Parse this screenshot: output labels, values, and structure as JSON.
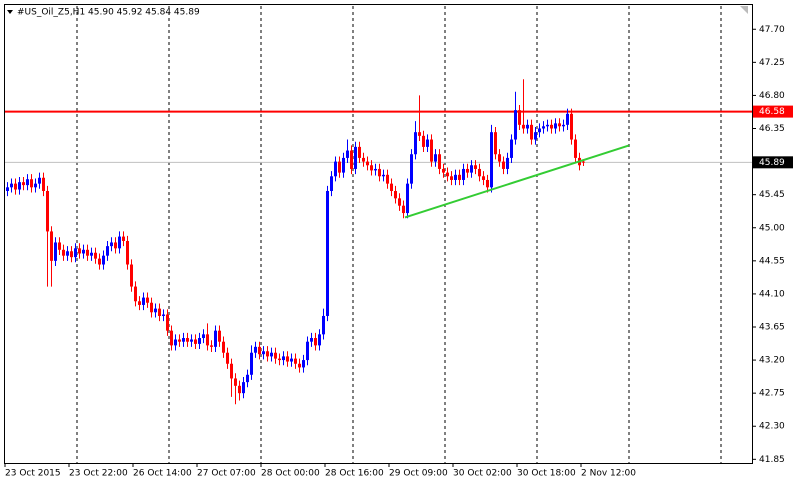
{
  "chart_data": {
    "type": "candlestick",
    "title": "#US_Oil_Z5,H1  45.90 45.92 45.84 45.89",
    "up_color": "#0000ff",
    "down_color": "#ff0000",
    "ylim": [
      41.8,
      48.03
    ],
    "yticks": [
      {
        "value": 47.7,
        "label": "47.70"
      },
      {
        "value": 47.25,
        "label": "47.25"
      },
      {
        "value": 46.8,
        "label": "46.80"
      },
      {
        "value": 46.35,
        "label": "46.35"
      },
      {
        "value": 45.45,
        "label": "45.45"
      },
      {
        "value": 45.0,
        "label": "45.00"
      },
      {
        "value": 44.55,
        "label": "44.55"
      },
      {
        "value": 44.1,
        "label": "44.10"
      },
      {
        "value": 43.65,
        "label": "43.65"
      },
      {
        "value": 43.2,
        "label": "43.20"
      },
      {
        "value": 42.75,
        "label": "42.75"
      },
      {
        "value": 42.3,
        "label": "42.30"
      },
      {
        "value": 41.85,
        "label": "41.85"
      }
    ],
    "resistance": {
      "value": 46.58,
      "color": "#ff0000"
    },
    "last_price": {
      "value": 45.89,
      "color": "#c0c0c0"
    },
    "trendline": {
      "values": [
        45.14,
        46.12
      ],
      "color": "#33cc33"
    },
    "categories": [
      "23 Oct 2015",
      null,
      null,
      null,
      null,
      null,
      null,
      null,
      null,
      null,
      null,
      null,
      null,
      null,
      null,
      null,
      "23 Oct 22:00",
      null,
      null,
      null,
      null,
      null,
      null,
      null,
      null,
      null,
      null,
      null,
      null,
      null,
      null,
      null,
      "26 Oct 14:00",
      null,
      null,
      null,
      null,
      null,
      null,
      null,
      null,
      null,
      null,
      null,
      null,
      null,
      null,
      null,
      "27 Oct 07:00",
      null,
      null,
      null,
      null,
      null,
      null,
      null,
      null,
      null,
      null,
      null,
      null,
      null,
      null,
      null,
      "28 Oct 00:00",
      null,
      null,
      null,
      null,
      null,
      null,
      null,
      null,
      null,
      null,
      null,
      null,
      null,
      null,
      null,
      "28 Oct 16:00",
      null,
      null,
      null,
      null,
      null,
      null,
      null,
      null,
      null,
      null,
      null,
      null,
      null,
      null,
      null,
      "29 Oct 09:00",
      null,
      null,
      null,
      null,
      null,
      null,
      null,
      null,
      null,
      null,
      null,
      null,
      null,
      null,
      null,
      "30 Oct 02:00",
      null,
      null,
      null,
      null,
      null,
      null,
      null,
      null,
      null,
      null,
      null,
      null,
      null,
      null,
      null,
      "30 Oct 18:00",
      null,
      null,
      null,
      null,
      null,
      null,
      null,
      null,
      null,
      null,
      null,
      null,
      null,
      null,
      null,
      "2 Nov 12:00"
    ],
    "ohlc": [
      [
        45.5,
        45.62,
        45.43,
        45.55
      ],
      [
        45.55,
        45.67,
        45.48,
        45.6
      ],
      [
        45.6,
        45.67,
        45.45,
        45.52
      ],
      [
        45.52,
        45.69,
        45.45,
        45.62
      ],
      [
        45.62,
        45.69,
        45.51,
        45.58
      ],
      [
        45.58,
        45.73,
        45.51,
        45.66
      ],
      [
        45.66,
        45.73,
        45.48,
        45.55
      ],
      [
        45.55,
        45.67,
        45.48,
        45.6
      ],
      [
        45.6,
        45.75,
        45.53,
        45.68
      ],
      [
        45.68,
        45.75,
        45.43,
        45.5
      ],
      [
        45.5,
        45.57,
        44.2,
        44.95
      ],
      [
        44.95,
        45.02,
        44.2,
        44.55
      ],
      [
        44.55,
        44.87,
        44.48,
        44.8
      ],
      [
        44.8,
        44.87,
        44.63,
        44.7
      ],
      [
        44.7,
        44.77,
        44.55,
        44.62
      ],
      [
        44.62,
        44.75,
        44.55,
        44.68
      ],
      [
        44.68,
        44.75,
        44.53,
        44.6
      ],
      [
        44.6,
        44.79,
        44.53,
        44.72
      ],
      [
        44.72,
        44.79,
        44.58,
        44.65
      ],
      [
        44.65,
        44.77,
        44.58,
        44.7
      ],
      [
        44.7,
        44.77,
        44.55,
        44.62
      ],
      [
        44.62,
        44.73,
        44.55,
        44.66
      ],
      [
        44.66,
        44.73,
        44.51,
        44.58
      ],
      [
        44.58,
        44.65,
        44.43,
        44.5
      ],
      [
        44.5,
        44.69,
        44.43,
        44.62
      ],
      [
        44.62,
        44.82,
        44.55,
        44.75
      ],
      [
        44.75,
        44.87,
        44.68,
        44.8
      ],
      [
        44.8,
        44.87,
        44.65,
        44.72
      ],
      [
        44.72,
        44.95,
        44.65,
        44.88
      ],
      [
        44.88,
        44.95,
        44.75,
        44.82
      ],
      [
        44.82,
        44.89,
        44.43,
        44.5
      ],
      [
        44.5,
        44.57,
        44.13,
        44.2
      ],
      [
        44.2,
        44.27,
        43.93,
        44.0
      ],
      [
        44.0,
        44.07,
        43.88,
        43.95
      ],
      [
        43.95,
        44.12,
        43.88,
        44.05
      ],
      [
        44.05,
        44.12,
        43.91,
        43.98
      ],
      [
        43.98,
        44.05,
        43.78,
        43.85
      ],
      [
        43.85,
        43.97,
        43.78,
        43.9
      ],
      [
        43.9,
        43.97,
        43.73,
        43.8
      ],
      [
        43.8,
        43.89,
        43.73,
        43.82
      ],
      [
        43.82,
        43.89,
        43.53,
        43.6
      ],
      [
        43.6,
        43.67,
        43.33,
        43.4
      ],
      [
        43.4,
        43.55,
        43.33,
        43.48
      ],
      [
        43.48,
        43.55,
        43.38,
        43.45
      ],
      [
        43.45,
        43.57,
        43.38,
        43.5
      ],
      [
        43.5,
        43.57,
        43.38,
        43.45
      ],
      [
        43.45,
        43.55,
        43.38,
        43.48
      ],
      [
        43.48,
        43.55,
        43.35,
        43.42
      ],
      [
        43.42,
        43.57,
        43.35,
        43.5
      ],
      [
        43.5,
        43.62,
        43.43,
        43.55
      ],
      [
        43.55,
        43.7,
        43.33,
        43.4
      ],
      [
        43.4,
        43.47,
        43.31,
        43.38
      ],
      [
        43.38,
        43.67,
        43.31,
        43.6
      ],
      [
        43.6,
        43.67,
        43.38,
        43.45
      ],
      [
        43.45,
        43.52,
        43.23,
        43.3
      ],
      [
        43.3,
        43.37,
        43.08,
        43.15
      ],
      [
        43.15,
        43.22,
        42.7,
        42.95
      ],
      [
        42.95,
        43.02,
        42.6,
        42.85
      ],
      [
        42.85,
        42.92,
        42.65,
        42.75
      ],
      [
        42.75,
        42.97,
        42.68,
        42.9
      ],
      [
        42.9,
        43.07,
        42.83,
        43.0
      ],
      [
        43.0,
        43.4,
        42.93,
        43.3
      ],
      [
        43.3,
        43.45,
        43.23,
        43.38
      ],
      [
        43.38,
        43.45,
        43.21,
        43.28
      ],
      [
        43.28,
        43.39,
        43.21,
        43.32
      ],
      [
        43.32,
        43.39,
        43.18,
        43.25
      ],
      [
        43.25,
        43.37,
        43.18,
        43.3
      ],
      [
        43.3,
        43.37,
        43.15,
        43.22
      ],
      [
        43.22,
        43.29,
        43.13,
        43.2
      ],
      [
        43.2,
        43.32,
        43.13,
        43.25
      ],
      [
        43.25,
        43.32,
        43.11,
        43.18
      ],
      [
        43.18,
        43.29,
        43.11,
        43.22
      ],
      [
        43.22,
        43.29,
        43.08,
        43.15
      ],
      [
        43.15,
        43.22,
        43.03,
        43.1
      ],
      [
        43.1,
        43.27,
        43.03,
        43.2
      ],
      [
        43.2,
        43.52,
        43.13,
        43.45
      ],
      [
        43.45,
        43.57,
        43.38,
        43.5
      ],
      [
        43.5,
        43.57,
        43.33,
        43.4
      ],
      [
        43.4,
        43.62,
        43.33,
        43.55
      ],
      [
        43.55,
        43.9,
        43.48,
        43.8
      ],
      [
        43.8,
        45.57,
        43.73,
        45.5
      ],
      [
        45.5,
        45.77,
        45.43,
        45.7
      ],
      [
        45.7,
        45.97,
        45.63,
        45.9
      ],
      [
        45.9,
        45.97,
        45.68,
        45.75
      ],
      [
        45.75,
        46.02,
        45.68,
        45.95
      ],
      [
        45.95,
        46.2,
        45.88,
        46.05
      ],
      [
        46.05,
        46.12,
        45.73,
        45.8
      ],
      [
        45.8,
        46.17,
        45.73,
        46.1
      ],
      [
        46.1,
        46.17,
        45.88,
        45.95
      ],
      [
        45.95,
        46.02,
        45.83,
        45.9
      ],
      [
        45.9,
        45.97,
        45.78,
        45.85
      ],
      [
        45.85,
        45.92,
        45.71,
        45.78
      ],
      [
        45.78,
        45.87,
        45.71,
        45.8
      ],
      [
        45.8,
        45.87,
        45.63,
        45.7
      ],
      [
        45.7,
        45.79,
        45.63,
        45.72
      ],
      [
        45.72,
        45.79,
        45.53,
        45.6
      ],
      [
        45.6,
        45.67,
        45.43,
        45.5
      ],
      [
        45.5,
        45.57,
        45.33,
        45.4
      ],
      [
        45.4,
        45.47,
        45.23,
        45.3
      ],
      [
        45.3,
        45.37,
        45.13,
        45.2
      ],
      [
        45.2,
        45.67,
        45.13,
        45.6
      ],
      [
        45.6,
        46.07,
        45.53,
        46.0
      ],
      [
        46.0,
        46.45,
        45.93,
        46.3
      ],
      [
        46.3,
        46.8,
        46.18,
        46.25
      ],
      [
        46.25,
        46.32,
        46.03,
        46.1
      ],
      [
        46.1,
        46.27,
        46.03,
        46.2
      ],
      [
        46.2,
        46.27,
        45.83,
        45.9
      ],
      [
        45.9,
        46.07,
        45.83,
        46.0
      ],
      [
        46.0,
        46.07,
        45.73,
        45.8
      ],
      [
        45.8,
        45.87,
        45.68,
        45.75
      ],
      [
        45.75,
        45.82,
        45.63,
        45.7
      ],
      [
        45.7,
        45.77,
        45.58,
        45.65
      ],
      [
        45.65,
        45.79,
        45.58,
        45.72
      ],
      [
        45.72,
        45.79,
        45.58,
        45.65
      ],
      [
        45.65,
        45.87,
        45.58,
        45.8
      ],
      [
        45.8,
        45.87,
        45.68,
        45.75
      ],
      [
        45.75,
        45.92,
        45.68,
        45.85
      ],
      [
        45.85,
        45.92,
        45.73,
        45.8
      ],
      [
        45.8,
        45.87,
        45.63,
        45.7
      ],
      [
        45.7,
        45.77,
        45.58,
        45.65
      ],
      [
        45.65,
        45.72,
        45.48,
        45.55
      ],
      [
        45.55,
        46.4,
        45.48,
        46.3
      ],
      [
        46.3,
        46.37,
        45.93,
        46.0
      ],
      [
        46.0,
        46.07,
        45.83,
        45.9
      ],
      [
        45.9,
        45.97,
        45.73,
        45.8
      ],
      [
        45.8,
        46.02,
        45.73,
        45.95
      ],
      [
        45.95,
        46.27,
        45.88,
        46.2
      ],
      [
        46.2,
        46.85,
        46.13,
        46.6
      ],
      [
        46.6,
        46.67,
        46.33,
        46.4
      ],
      [
        46.4,
        47.02,
        46.28,
        46.35
      ],
      [
        46.35,
        46.47,
        46.28,
        46.4
      ],
      [
        46.4,
        46.47,
        46.13,
        46.2
      ],
      [
        46.2,
        46.37,
        46.13,
        46.3
      ],
      [
        46.3,
        46.42,
        46.23,
        46.35
      ],
      [
        46.35,
        46.45,
        46.28,
        46.38
      ],
      [
        46.38,
        46.47,
        46.31,
        46.4
      ],
      [
        46.4,
        46.47,
        46.28,
        46.35
      ],
      [
        46.35,
        46.49,
        46.28,
        46.42
      ],
      [
        46.42,
        46.49,
        46.31,
        46.38
      ],
      [
        46.38,
        46.47,
        46.31,
        46.4
      ],
      [
        46.4,
        46.62,
        46.33,
        46.55
      ],
      [
        46.55,
        46.62,
        46.13,
        46.2
      ],
      [
        46.2,
        46.27,
        45.88,
        45.95
      ],
      [
        45.95,
        46.02,
        45.78,
        45.85
      ],
      [
        45.9,
        45.92,
        45.84,
        45.89
      ]
    ]
  }
}
